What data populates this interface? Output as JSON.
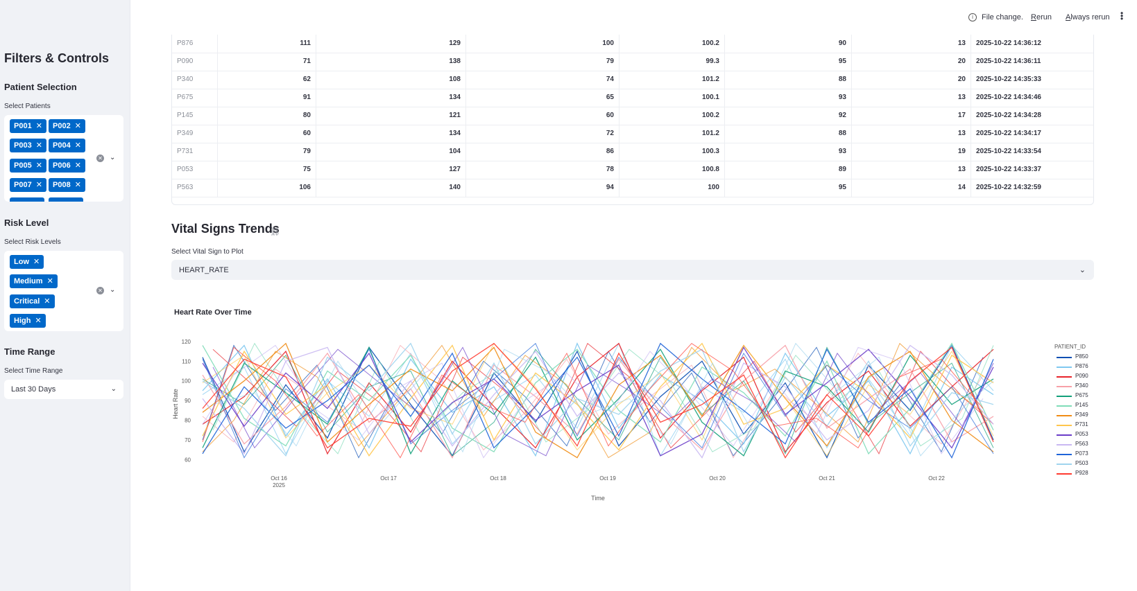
{
  "topbar": {
    "file_change": "File change.",
    "rerun": "Rerun",
    "always_rerun": "Always rerun"
  },
  "sidebar": {
    "title": "Filters & Controls",
    "patient_section": "Patient Selection",
    "patient_label": "Select Patients",
    "patients": [
      "P001",
      "P002",
      "P003",
      "P004",
      "P005",
      "P006",
      "P007",
      "P008"
    ],
    "risk_section": "Risk Level",
    "risk_label": "Select Risk Levels",
    "risks": [
      "Low",
      "Medium",
      "Critical",
      "High"
    ],
    "time_section": "Time Range",
    "time_label": "Select Time Range",
    "time_value": "Last 30 Days"
  },
  "table": {
    "rows": [
      [
        "P876",
        "111",
        "129",
        "100",
        "100.2",
        "90",
        "13",
        "2025-10-22 14:36:12"
      ],
      [
        "P090",
        "71",
        "138",
        "79",
        "99.3",
        "95",
        "20",
        "2025-10-22 14:36:11"
      ],
      [
        "P340",
        "62",
        "108",
        "74",
        "101.2",
        "88",
        "20",
        "2025-10-22 14:35:33"
      ],
      [
        "P675",
        "91",
        "134",
        "65",
        "100.1",
        "93",
        "13",
        "2025-10-22 14:34:46"
      ],
      [
        "P145",
        "80",
        "121",
        "60",
        "100.2",
        "92",
        "17",
        "2025-10-22 14:34:28"
      ],
      [
        "P349",
        "60",
        "134",
        "72",
        "101.2",
        "88",
        "13",
        "2025-10-22 14:34:17"
      ],
      [
        "P731",
        "79",
        "104",
        "86",
        "100.3",
        "93",
        "19",
        "2025-10-22 14:33:54"
      ],
      [
        "P053",
        "75",
        "127",
        "78",
        "100.8",
        "89",
        "13",
        "2025-10-22 14:33:37"
      ],
      [
        "P563",
        "106",
        "140",
        "94",
        "100",
        "95",
        "14",
        "2025-10-22 14:32:59"
      ]
    ]
  },
  "trends": {
    "title": "Vital Signs Trends",
    "select_label": "Select Vital Sign to Plot",
    "select_value": "HEART_RATE"
  },
  "chart_data": {
    "type": "line",
    "title": "Heart Rate Over Time",
    "xlabel": "Time",
    "ylabel": "Heart Rate",
    "ylim": [
      57,
      121
    ],
    "yticks": [
      60,
      70,
      80,
      90,
      100,
      110,
      120
    ],
    "xticks": [
      "Oct 16",
      "Oct 17",
      "Oct 18",
      "Oct 19",
      "Oct 20",
      "Oct 21",
      "Oct 22"
    ],
    "xtick_year": "2025",
    "legend_title": "PATIENT_ID",
    "series": [
      {
        "name": "P850",
        "color": "#0b4fb3",
        "values": [
          112,
          64,
          98,
          71,
          117,
          88,
          62,
          104,
          79,
          115,
          67,
          92,
          110,
          73,
          99,
          61,
          108,
          85,
          118,
          70
        ]
      },
      {
        "name": "P876",
        "color": "#7ec8f0",
        "values": [
          95,
          118,
          72,
          101,
          66,
          111,
          84,
          97,
          62,
          119,
          76,
          103,
          90,
          68,
          114,
          82,
          100,
          63,
          107,
          93
        ]
      },
      {
        "name": "P090",
        "color": "#e8242b",
        "values": [
          78,
          92,
          115,
          63,
          99,
          74,
          110,
          87,
          66,
          102,
          119,
          71,
          95,
          112,
          64,
          89,
          105,
          77,
          97,
          116
        ]
      },
      {
        "name": "P340",
        "color": "#f7a0a8",
        "values": [
          103,
          68,
          87,
          114,
          79,
          96,
          61,
          108,
          92,
          73,
          111,
          84,
          65,
          100,
          118,
          76,
          91,
          106,
          69,
          82
        ]
      },
      {
        "name": "P675",
        "color": "#12a07a",
        "values": [
          66,
          109,
          94,
          78,
          117,
          63,
          100,
          83,
          112,
          70,
          91,
          116,
          79,
          62,
          105,
          97,
          74,
          113,
          88,
          101
        ]
      },
      {
        "name": "P145",
        "color": "#7fdcb8",
        "values": [
          118,
          81,
          67,
          105,
          90,
          113,
          76,
          64,
          99,
          116,
          85,
          69,
          107,
          94,
          72,
          110,
          63,
          86,
          119,
          75
        ]
      },
      {
        "name": "P349",
        "color": "#f08c14",
        "values": [
          84,
          100,
          119,
          69,
          88,
          106,
          95,
          117,
          74,
          61,
          98,
          113,
          82,
          118,
          91,
          67,
          102,
          115,
          80,
          64
        ]
      },
      {
        "name": "P731",
        "color": "#ffc64d",
        "values": [
          72,
          115,
          83,
          98,
          62,
          91,
          118,
          70,
          104,
          88,
          65,
          97,
          119,
          78,
          86,
          108,
          94,
          71,
          113,
          99
        ]
      },
      {
        "name": "P053",
        "color": "#6a3cc8",
        "values": [
          109,
          77,
          104,
          86,
          114,
          69,
          89,
          101,
          80,
          95,
          108,
          62,
          73,
          117,
          83,
          99,
          116,
          92,
          66,
          107
        ]
      },
      {
        "name": "P563",
        "color": "#c9b8f2",
        "values": [
          91,
          63,
          110,
          117,
          73,
          100,
          67,
          93,
          115,
          82,
          104,
          90,
          61,
          109,
          97,
          70,
          85,
          118,
          103,
          78
        ]
      },
      {
        "name": "P073",
        "color": "#1e64d8",
        "values": [
          63,
          97,
          76,
          90,
          108,
          82,
          114,
          66,
          87,
          112,
          72,
          119,
          101,
          85,
          68,
          116,
          79,
          96,
          61,
          111
        ]
      },
      {
        "name": "P503",
        "color": "#9fd4ee",
        "values": [
          100,
          86,
          62,
          112,
          95,
          119,
          73,
          109,
          68,
          91,
          83,
          105,
          116,
          64,
          102,
          77,
          110,
          67,
          94,
          88
        ]
      },
      {
        "name": "P928",
        "color": "#ff3b30",
        "values": [
          86,
          111,
          102,
          66,
          81,
          77,
          105,
          119,
          96,
          67,
          114,
          79,
          88,
          103,
          61,
          93,
          72,
          100,
          117,
          69
        ]
      }
    ]
  }
}
